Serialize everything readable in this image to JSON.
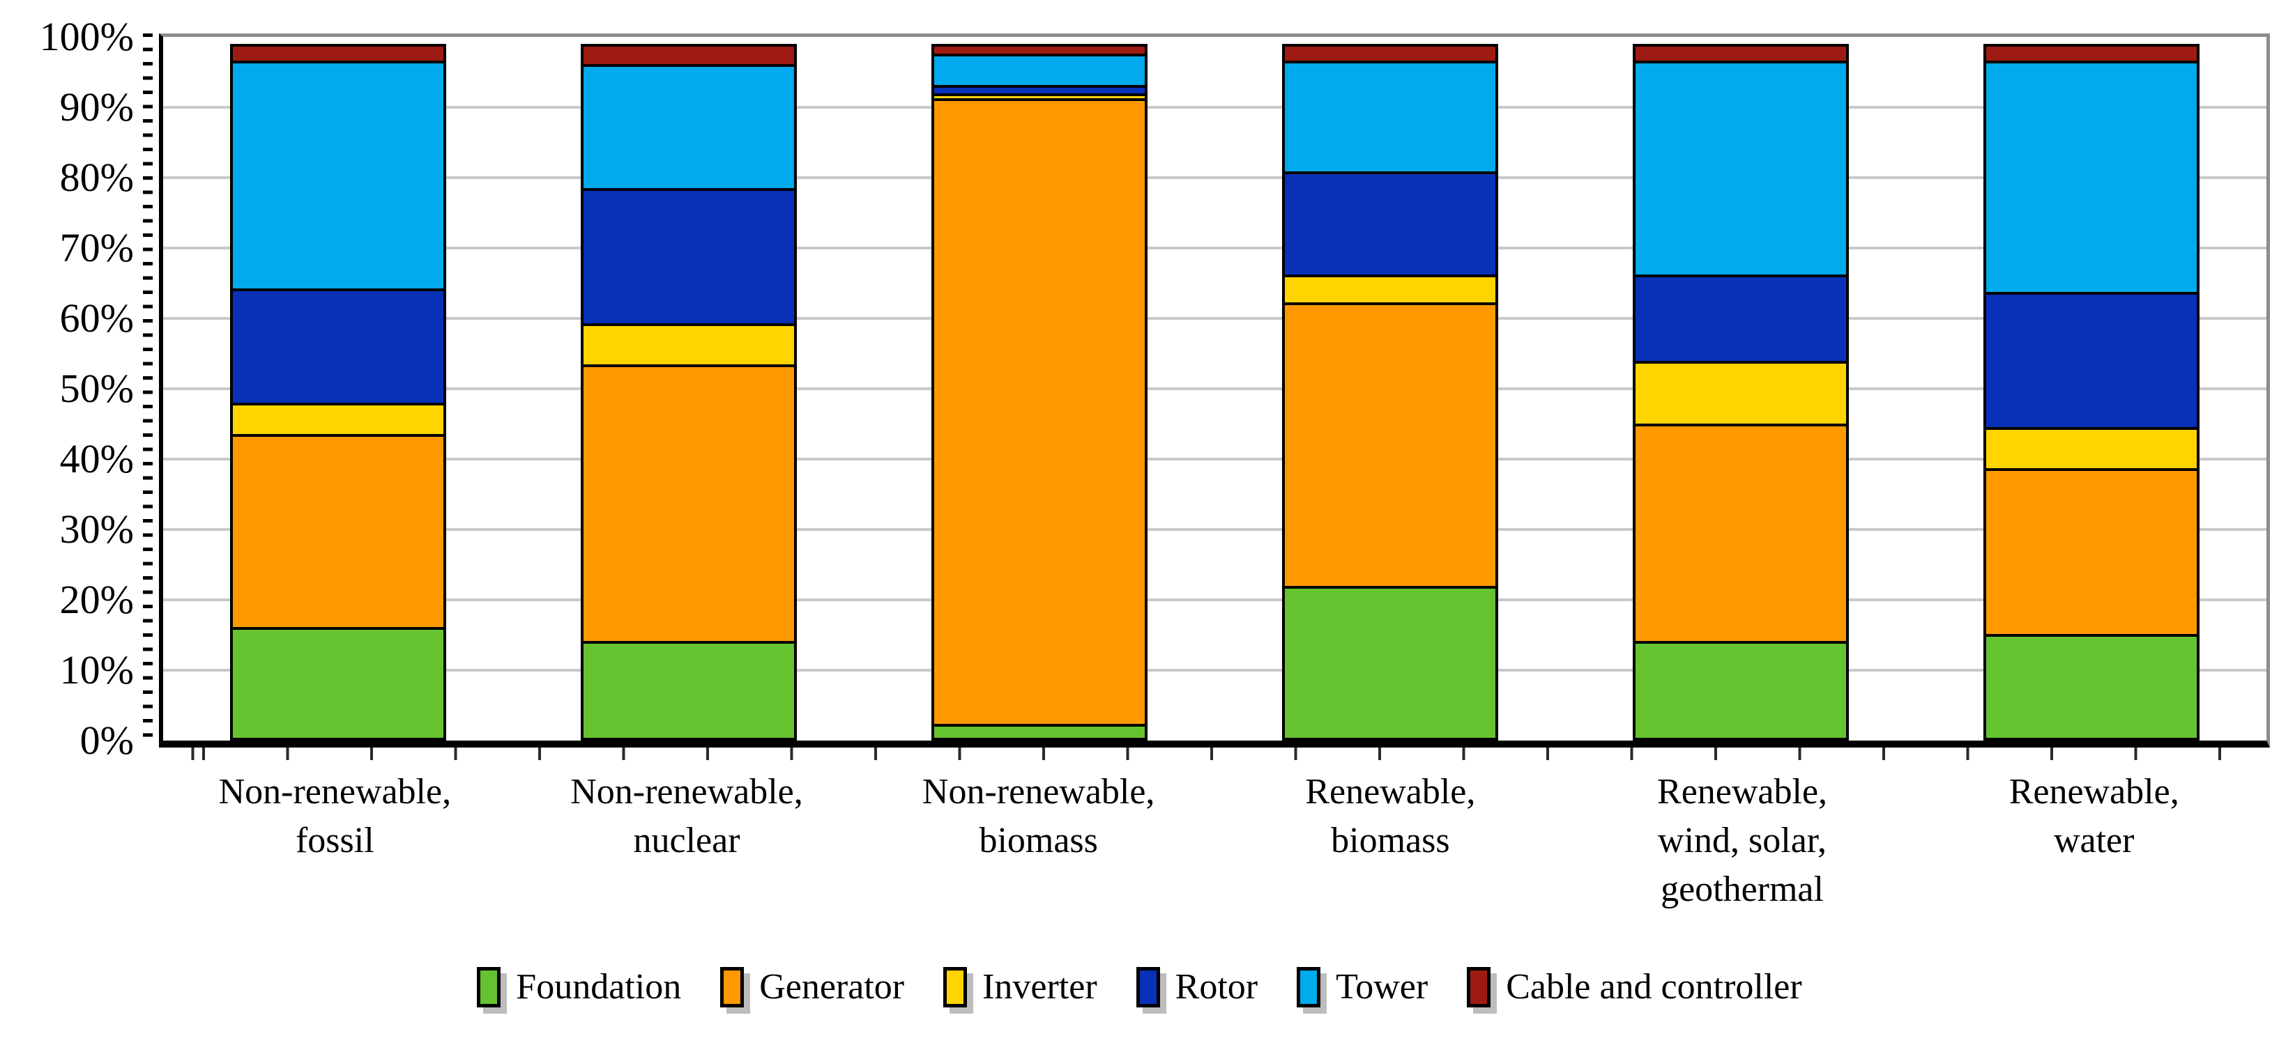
{
  "chart_data": {
    "type": "bar",
    "stacked": true,
    "unit": "%",
    "categories": [
      "Non-renewable,\nfossil",
      "Non-renewable,\nnuclear",
      "Non-renewable,\nbiomass",
      "Renewable,\nbiomass",
      "Renewable,\nwind, solar,\ngeothermal",
      "Renewable,\nwater"
    ],
    "series": [
      {
        "name": "Foundation",
        "color": "#65C32F",
        "values": [
          16,
          14,
          2,
          22,
          14,
          15
        ]
      },
      {
        "name": "Generator",
        "color": "#FF9900",
        "values": [
          28,
          40,
          90.5,
          41,
          31.5,
          24
        ]
      },
      {
        "name": "Inverter",
        "color": "#FFD400",
        "values": [
          4.5,
          6,
          0.8,
          4,
          9,
          6
        ]
      },
      {
        "name": "Rotor",
        "color": "#0931B8",
        "values": [
          16.5,
          19.5,
          1.2,
          15,
          12.5,
          19.5
        ]
      },
      {
        "name": "Tower",
        "color": "#00AAEC",
        "values": [
          33,
          18,
          4.5,
          16,
          31,
          33.5
        ]
      },
      {
        "name": "Cable and controller",
        "color": "#9E1B13",
        "values": [
          2,
          2.5,
          1,
          2,
          2,
          2
        ]
      }
    ],
    "y_axis": {
      "tick_labels": [
        "100%",
        "90%",
        "80%",
        "70%",
        "60%",
        "50%",
        "40%",
        "30%",
        "20%",
        "10%",
        "0%"
      ],
      "ylim": [
        0,
        100
      ],
      "grid": "horizontal"
    },
    "legend_position": "bottom",
    "xlabel": "",
    "ylabel": "",
    "title": ""
  }
}
